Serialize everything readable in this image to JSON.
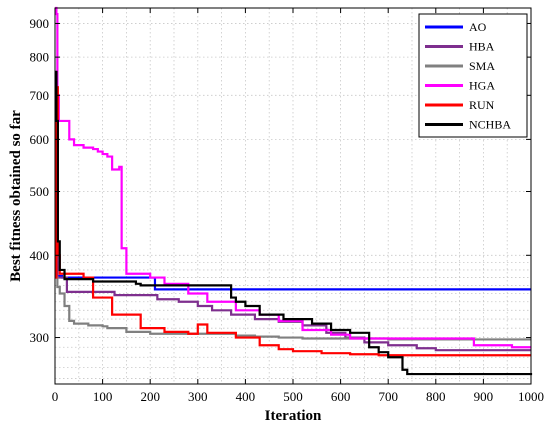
{
  "chart_data": {
    "type": "line",
    "xlabel": "Iteration",
    "ylabel": "Best fitness obtained so far",
    "xlim": [
      0,
      1000
    ],
    "ylim": [
      255,
      950
    ],
    "yscale": "log",
    "grid": true,
    "legend_position": "top-right",
    "xticks": [
      0,
      100,
      200,
      300,
      400,
      500,
      600,
      700,
      800,
      900,
      1000
    ],
    "yticks": [
      300,
      400,
      500,
      600,
      700,
      800,
      900
    ],
    "series": [
      {
        "name": "AO",
        "color": "#0000ff",
        "steps": [
          [
            0,
            390
          ],
          [
            5,
            372
          ],
          [
            15,
            370
          ],
          [
            200,
            370
          ],
          [
            210,
            355
          ],
          [
            1000,
            355
          ]
        ]
      },
      {
        "name": "HBA",
        "color": "#7e2f8e",
        "steps": [
          [
            0,
            400
          ],
          [
            5,
            370
          ],
          [
            25,
            352
          ],
          [
            120,
            352
          ],
          [
            125,
            348
          ],
          [
            200,
            348
          ],
          [
            215,
            343
          ],
          [
            260,
            340
          ],
          [
            300,
            335
          ],
          [
            330,
            330
          ],
          [
            370,
            325
          ],
          [
            420,
            320
          ],
          [
            470,
            317
          ],
          [
            520,
            313
          ],
          [
            570,
            305
          ],
          [
            610,
            300
          ],
          [
            650,
            295
          ],
          [
            700,
            292
          ],
          [
            760,
            289
          ],
          [
            800,
            287
          ],
          [
            1000,
            287
          ]
        ]
      },
      {
        "name": "SMA",
        "color": "#808080",
        "steps": [
          [
            0,
            370
          ],
          [
            5,
            358
          ],
          [
            10,
            350
          ],
          [
            20,
            335
          ],
          [
            30,
            318
          ],
          [
            40,
            315
          ],
          [
            70,
            313
          ],
          [
            100,
            312
          ],
          [
            110,
            310
          ],
          [
            150,
            306
          ],
          [
            200,
            304
          ],
          [
            300,
            304
          ],
          [
            380,
            302
          ],
          [
            420,
            301
          ],
          [
            470,
            300
          ],
          [
            520,
            299
          ],
          [
            600,
            299
          ],
          [
            680,
            299
          ],
          [
            700,
            298
          ],
          [
            1000,
            298
          ]
        ]
      },
      {
        "name": "HGA",
        "color": "#ff00ff",
        "steps": [
          [
            0,
            980
          ],
          [
            3,
            930
          ],
          [
            5,
            700
          ],
          [
            8,
            640
          ],
          [
            20,
            640
          ],
          [
            30,
            600
          ],
          [
            40,
            588
          ],
          [
            60,
            583
          ],
          [
            80,
            580
          ],
          [
            90,
            575
          ],
          [
            100,
            570
          ],
          [
            110,
            565
          ],
          [
            120,
            540
          ],
          [
            135,
            545
          ],
          [
            140,
            410
          ],
          [
            150,
            375
          ],
          [
            200,
            370
          ],
          [
            230,
            362
          ],
          [
            280,
            350
          ],
          [
            320,
            340
          ],
          [
            380,
            330
          ],
          [
            430,
            325
          ],
          [
            470,
            318
          ],
          [
            520,
            308
          ],
          [
            580,
            303
          ],
          [
            620,
            299
          ],
          [
            700,
            299
          ],
          [
            860,
            299
          ],
          [
            880,
            292
          ],
          [
            960,
            290
          ],
          [
            1000,
            290
          ]
        ]
      },
      {
        "name": "RUN",
        "color": "#ff0000",
        "steps": [
          [
            0,
            370
          ],
          [
            3,
            720
          ],
          [
            6,
            400
          ],
          [
            10,
            375
          ],
          [
            60,
            370
          ],
          [
            80,
            345
          ],
          [
            120,
            325
          ],
          [
            180,
            310
          ],
          [
            230,
            306
          ],
          [
            280,
            304
          ],
          [
            300,
            314
          ],
          [
            320,
            305
          ],
          [
            380,
            300
          ],
          [
            430,
            292
          ],
          [
            470,
            288
          ],
          [
            500,
            286
          ],
          [
            560,
            284
          ],
          [
            620,
            283
          ],
          [
            680,
            282
          ],
          [
            1000,
            282
          ]
        ]
      },
      {
        "name": "NCHBA",
        "color": "#000000",
        "steps": [
          [
            0,
            760
          ],
          [
            3,
            640
          ],
          [
            6,
            420
          ],
          [
            10,
            380
          ],
          [
            20,
            368
          ],
          [
            80,
            365
          ],
          [
            170,
            362
          ],
          [
            180,
            360
          ],
          [
            290,
            360
          ],
          [
            300,
            360
          ],
          [
            360,
            360
          ],
          [
            370,
            345
          ],
          [
            380,
            340
          ],
          [
            400,
            335
          ],
          [
            430,
            325
          ],
          [
            480,
            320
          ],
          [
            540,
            315
          ],
          [
            580,
            308
          ],
          [
            620,
            305
          ],
          [
            660,
            290
          ],
          [
            680,
            285
          ],
          [
            700,
            280
          ],
          [
            730,
            268
          ],
          [
            740,
            264
          ],
          [
            1000,
            263
          ]
        ]
      }
    ]
  }
}
